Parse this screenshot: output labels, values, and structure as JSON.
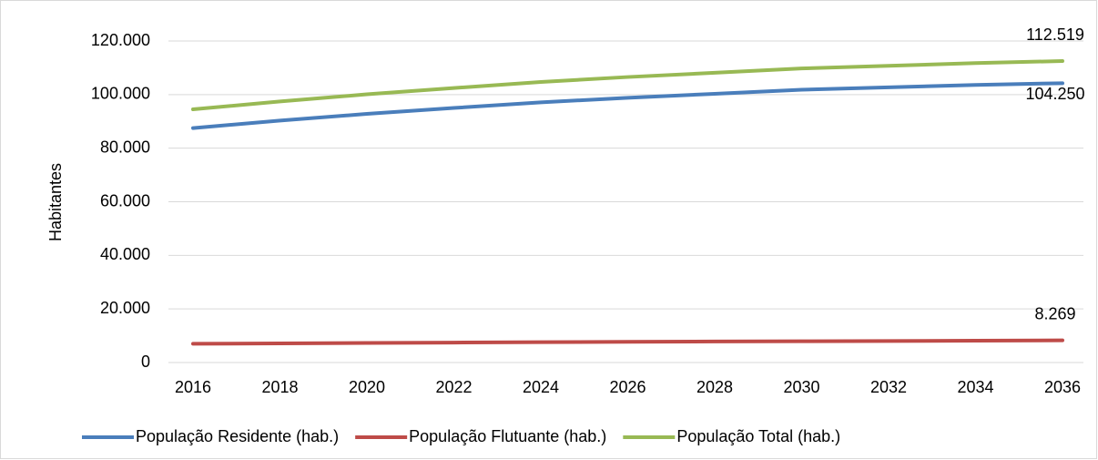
{
  "chart_data": {
    "type": "line",
    "y_axis_label": "Habitantes",
    "categories": [
      "2016",
      "2018",
      "2020",
      "2022",
      "2024",
      "2026",
      "2028",
      "2030",
      "2032",
      "2034",
      "2036"
    ],
    "ylim": [
      0,
      120000
    ],
    "yticks": [
      0,
      {
        "value": 20000,
        "label": "20.000"
      },
      {
        "value": 40000,
        "label": "40.000"
      },
      {
        "value": 60000,
        "label": "60.000"
      },
      {
        "value": 80000,
        "label": "80.000"
      },
      {
        "value": 100000,
        "label": "100.000"
      },
      {
        "value": 120000,
        "label": "120.000"
      }
    ],
    "grid": true,
    "legend": "bottom",
    "series": [
      {
        "name": "População Residente (hab.)",
        "color": "#4a7ebb",
        "values": [
          87500,
          90300,
          92800,
          95000,
          97100,
          98800,
          100300,
          101800,
          102700,
          103600,
          104250
        ],
        "value_labels": [
          null,
          null,
          null,
          null,
          null,
          null,
          null,
          null,
          null,
          null,
          "104.250"
        ]
      },
      {
        "name": "População Flutuante  (hab.)",
        "color": "#be4b48",
        "values": [
          7000,
          7150,
          7300,
          7450,
          7600,
          7750,
          7850,
          7950,
          8050,
          8150,
          8269
        ],
        "value_labels": [
          null,
          null,
          null,
          null,
          null,
          null,
          null,
          null,
          null,
          null,
          "8.269"
        ]
      },
      {
        "name": "População Total  (hab.)",
        "color": "#98b954",
        "values": [
          94500,
          97450,
          100100,
          102450,
          104700,
          106550,
          108150,
          109750,
          110750,
          111750,
          112519
        ],
        "value_labels": [
          null,
          null,
          null,
          null,
          null,
          null,
          null,
          null,
          null,
          null,
          "112.519"
        ]
      }
    ]
  }
}
